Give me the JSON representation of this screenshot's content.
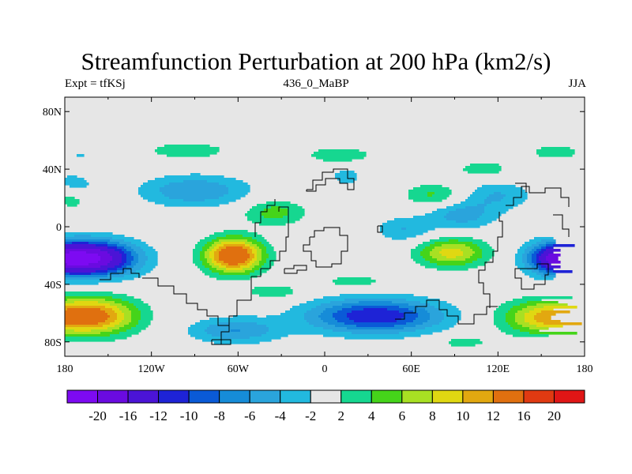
{
  "title": "Streamfunction Perturbation at 200 hPa (km2/s)",
  "left_string": "Expt = tfKSj",
  "center_string": "436_0_MaBP",
  "right_string": "JJA",
  "lat_ticks": [
    "80N",
    "40N",
    "0",
    "40S",
    "80S"
  ],
  "lat_values": [
    80,
    40,
    0,
    -40,
    -80
  ],
  "lon_ticks": [
    "180",
    "120W",
    "60W",
    "0",
    "60E",
    "120E",
    "180"
  ],
  "lon_values": [
    -180,
    -120,
    -60,
    0,
    60,
    120,
    180
  ],
  "colorbar": {
    "colors": [
      "#7d0af2",
      "#6a0be0",
      "#4b14d6",
      "#1e23d6",
      "#0a5ad7",
      "#168cd8",
      "#2aa4dc",
      "#22b9df",
      "#e6e6e6",
      "#16d790",
      "#45d41a",
      "#a8e023",
      "#e0d812",
      "#e2a810",
      "#e0700f",
      "#e03a12",
      "#e01616"
    ],
    "labels": [
      "-20",
      "-16",
      "-12",
      "-10",
      "-8",
      "-6",
      "-4",
      "-2",
      "2",
      "4",
      "6",
      "8",
      "10",
      "12",
      "16",
      "20"
    ]
  },
  "field_anomalies": [
    {
      "lon": -165,
      "lat": -22,
      "peak": -22,
      "rlon": 32,
      "rlat": 12
    },
    {
      "lon": 160,
      "lat": -22,
      "peak": -13,
      "rlon": 20,
      "rlat": 11
    },
    {
      "lon": 35,
      "lat": -62,
      "peak": -12,
      "rlon": 46,
      "rlat": 12
    },
    {
      "lon": -62,
      "lat": -72,
      "peak": -6,
      "rlon": 32,
      "rlat": 9
    },
    {
      "lon": -90,
      "lat": 25,
      "peak": -6,
      "rlon": 38,
      "rlat": 11
    },
    {
      "lon": 95,
      "lat": 8,
      "peak": -5,
      "rlon": 24,
      "rlat": 10
    },
    {
      "lon": 120,
      "lat": 22,
      "peak": -4,
      "rlon": 24,
      "rlat": 10
    },
    {
      "lon": 55,
      "lat": -2,
      "peak": -4,
      "rlon": 20,
      "rlat": 9
    },
    {
      "lon": -175,
      "lat": 30,
      "peak": -3,
      "rlon": 16,
      "rlat": 8
    },
    {
      "lon": 15,
      "lat": 35,
      "peak": -3,
      "rlon": 12,
      "rlat": 7
    },
    {
      "lon": -170,
      "lat": 50,
      "peak": -2.5,
      "rlon": 10,
      "rlat": 5
    },
    {
      "lon": -160,
      "lat": -62,
      "peak": 13,
      "rlon": 30,
      "rlat": 13
    },
    {
      "lon": 155,
      "lat": -63,
      "peak": 10.5,
      "rlon": 32,
      "rlat": 12
    },
    {
      "lon": -63,
      "lat": -20,
      "peak": 16,
      "rlon": 20,
      "rlat": 12
    },
    {
      "lon": 88,
      "lat": -18,
      "peak": 9,
      "rlon": 24,
      "rlat": 10
    },
    {
      "lon": -35,
      "lat": 10,
      "peak": 5,
      "rlon": 22,
      "rlat": 9
    },
    {
      "lon": 75,
      "lat": 22,
      "peak": 4.5,
      "rlon": 20,
      "rlat": 8
    },
    {
      "lon": -95,
      "lat": 53,
      "peak": 3.5,
      "rlon": 30,
      "rlat": 6
    },
    {
      "lon": 10,
      "lat": 50,
      "peak": 3.5,
      "rlon": 25,
      "rlat": 6
    },
    {
      "lon": 160,
      "lat": 52,
      "peak": 3,
      "rlon": 22,
      "rlat": 6
    },
    {
      "lon": 110,
      "lat": 40,
      "peak": 3,
      "rlon": 22,
      "rlat": 7
    },
    {
      "lon": -175,
      "lat": 18,
      "peak": 3,
      "rlon": 10,
      "rlat": 6
    },
    {
      "lon": -35,
      "lat": -45,
      "peak": 3.5,
      "rlon": 20,
      "rlat": 5
    },
    {
      "lon": 20,
      "lat": -38,
      "peak": 3,
      "rlon": 26,
      "rlat": 5
    },
    {
      "lon": 95,
      "lat": -80,
      "peak": 3,
      "rlon": 20,
      "rlat": 5
    },
    {
      "lon": 175,
      "lat": 25,
      "peak": 2.5,
      "rlon": 8,
      "rlat": 5
    }
  ]
}
